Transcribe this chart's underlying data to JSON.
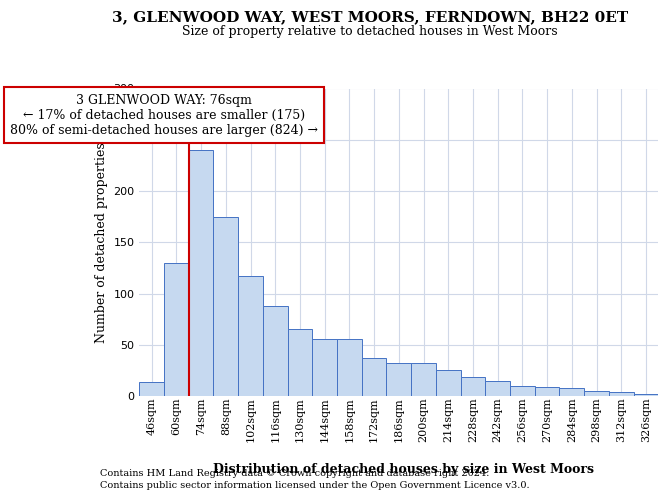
{
  "title": "3, GLENWOOD WAY, WEST MOORS, FERNDOWN, BH22 0ET",
  "subtitle": "Size of property relative to detached houses in West Moors",
  "xlabel": "Distribution of detached houses by size in West Moors",
  "ylabel": "Number of detached properties",
  "footnote1": "Contains HM Land Registry data © Crown copyright and database right 2024.",
  "footnote2": "Contains public sector information licensed under the Open Government Licence v3.0.",
  "annotation_title": "3 GLENWOOD WAY: 76sqm",
  "annotation_line2": "← 17% of detached houses are smaller (175)",
  "annotation_line3": "80% of semi-detached houses are larger (824) →",
  "bar_categories": [
    "46sqm",
    "60sqm",
    "74sqm",
    "88sqm",
    "102sqm",
    "116sqm",
    "130sqm",
    "144sqm",
    "158sqm",
    "172sqm",
    "186sqm",
    "200sqm",
    "214sqm",
    "228sqm",
    "242sqm",
    "256sqm",
    "270sqm",
    "284sqm",
    "298sqm",
    "312sqm",
    "326sqm"
  ],
  "bar_values": [
    14,
    130,
    240,
    175,
    117,
    88,
    65,
    56,
    56,
    37,
    32,
    32,
    25,
    19,
    15,
    10,
    9,
    8,
    5,
    4,
    2
  ],
  "bar_color": "#c6d9f0",
  "bar_edge_color": "#4472c4",
  "property_bin_index": 2,
  "red_line_color": "#cc0000",
  "background_color": "#ffffff",
  "grid_color": "#d0d8e8",
  "ylim": [
    0,
    300
  ],
  "yticks": [
    0,
    50,
    100,
    150,
    200,
    250,
    300
  ],
  "title_fontsize": 11,
  "subtitle_fontsize": 9,
  "ylabel_fontsize": 9,
  "xlabel_fontsize": 9,
  "tick_fontsize": 8,
  "footnote_fontsize": 7,
  "annotation_fontsize": 9
}
